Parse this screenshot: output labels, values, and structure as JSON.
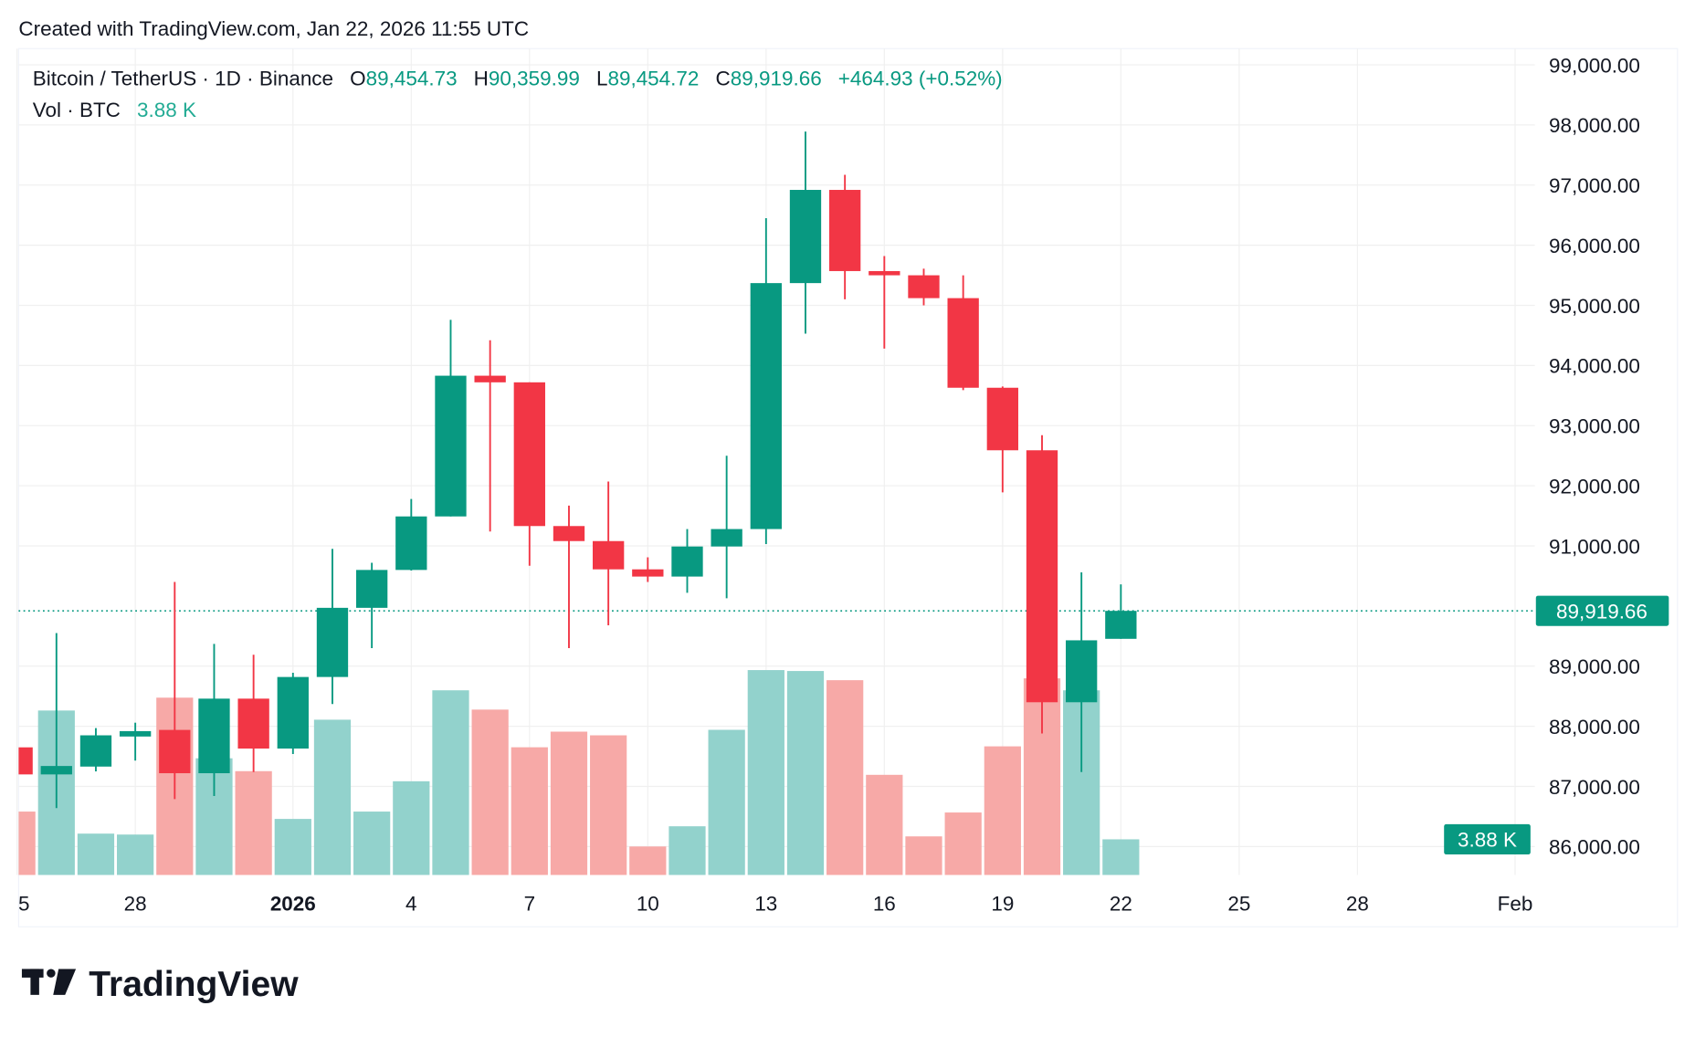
{
  "caption": "Created with TradingView.com, Jan 22, 2026 11:55 UTC",
  "legend": {
    "symbol": "Bitcoin / TetherUS · 1D · Binance",
    "o_label": "O",
    "o_value": "89,454.73",
    "h_label": "H",
    "h_value": "90,359.99",
    "l_label": "L",
    "l_value": "89,454.72",
    "c_label": "C",
    "c_value": "89,919.66",
    "change": "+464.93 (+0.52%)",
    "vol_label": "Vol · BTC",
    "vol_value": "3.88 K"
  },
  "last_price_label": "89,919.66",
  "last_volume_label": "3.88 K",
  "brand": "TradingView",
  "colors": {
    "up": "#089981",
    "down": "#F23645",
    "vol_up": "#92D2CC",
    "vol_down": "#F7A9A7",
    "grid": "#F0F0F0",
    "text": "#131722"
  },
  "chart_data": {
    "type": "candlestick",
    "price_axis": {
      "ticks": [
        "99,000.00",
        "98,000.00",
        "97,000.00",
        "96,000.00",
        "95,000.00",
        "94,000.00",
        "93,000.00",
        "92,000.00",
        "91,000.00",
        "89,000.00",
        "88,000.00",
        "87,000.00",
        "86,000.00"
      ],
      "tick_values": [
        99000,
        98000,
        97000,
        96000,
        95000,
        94000,
        93000,
        92000,
        91000,
        89000,
        88000,
        87000,
        86000
      ],
      "range": [
        85500,
        99300
      ]
    },
    "time_axis": {
      "ticks": [
        {
          "label": "5",
          "date": "2025-12-25"
        },
        {
          "label": "28",
          "date": "2025-12-28"
        },
        {
          "label": "2026",
          "date": "2026-01-01",
          "bold": true
        },
        {
          "label": "4",
          "date": "2026-01-04"
        },
        {
          "label": "7",
          "date": "2026-01-07"
        },
        {
          "label": "10",
          "date": "2026-01-10"
        },
        {
          "label": "13",
          "date": "2026-01-13"
        },
        {
          "label": "16",
          "date": "2026-01-16"
        },
        {
          "label": "19",
          "date": "2026-01-19"
        },
        {
          "label": "22",
          "date": "2026-01-22"
        },
        {
          "label": "25",
          "date": "2026-01-25"
        },
        {
          "label": "28",
          "date": "2026-01-28"
        },
        {
          "label": "Feb",
          "date": "2026-02-01"
        }
      ],
      "start": "2025-12-25",
      "end": "2026-02-01"
    },
    "grid": true,
    "last_price": 89919.66,
    "volume_unit": "K BTC",
    "candles": [
      {
        "date": "2025-12-25",
        "o": 87650,
        "h": 87700,
        "l": 87150,
        "c": 87200,
        "v": 6.9
      },
      {
        "date": "2025-12-26",
        "o": 87200,
        "h": 89550,
        "l": 86640,
        "c": 87340,
        "v": 17.9
      },
      {
        "date": "2025-12-27",
        "o": 87330,
        "h": 87970,
        "l": 87250,
        "c": 87850,
        "v": 4.5
      },
      {
        "date": "2025-12-28",
        "o": 87830,
        "h": 88060,
        "l": 87430,
        "c": 87920,
        "v": 4.4
      },
      {
        "date": "2025-12-29",
        "o": 87940,
        "h": 90400,
        "l": 86790,
        "c": 87220,
        "v": 19.3
      },
      {
        "date": "2025-12-30",
        "o": 87220,
        "h": 89370,
        "l": 86840,
        "c": 88460,
        "v": 12.7
      },
      {
        "date": "2025-12-31",
        "o": 88460,
        "h": 89190,
        "l": 87240,
        "c": 87630,
        "v": 11.3
      },
      {
        "date": "2026-01-01",
        "o": 87630,
        "h": 88890,
        "l": 87540,
        "c": 88820,
        "v": 6.1
      },
      {
        "date": "2026-01-02",
        "o": 88820,
        "h": 90950,
        "l": 88370,
        "c": 89970,
        "v": 16.9
      },
      {
        "date": "2026-01-03",
        "o": 89970,
        "h": 90720,
        "l": 89300,
        "c": 90600,
        "v": 6.9
      },
      {
        "date": "2026-01-04",
        "o": 90600,
        "h": 91780,
        "l": 90590,
        "c": 91490,
        "v": 10.2
      },
      {
        "date": "2026-01-05",
        "o": 91490,
        "h": 94760,
        "l": 91490,
        "c": 93830,
        "v": 20.1
      },
      {
        "date": "2026-01-06",
        "o": 93830,
        "h": 94420,
        "l": 91240,
        "c": 93720,
        "v": 18.0
      },
      {
        "date": "2026-01-07",
        "o": 93720,
        "h": 93720,
        "l": 90670,
        "c": 91330,
        "v": 13.9
      },
      {
        "date": "2026-01-08",
        "o": 91330,
        "h": 91670,
        "l": 89300,
        "c": 91080,
        "v": 15.6
      },
      {
        "date": "2026-01-09",
        "o": 91080,
        "h": 92070,
        "l": 89680,
        "c": 90610,
        "v": 15.2
      },
      {
        "date": "2026-01-10",
        "o": 90610,
        "h": 90810,
        "l": 90400,
        "c": 90490,
        "v": 3.1
      },
      {
        "date": "2026-01-11",
        "o": 90490,
        "h": 91280,
        "l": 90220,
        "c": 90990,
        "v": 5.3
      },
      {
        "date": "2026-01-12",
        "o": 90990,
        "h": 92500,
        "l": 90130,
        "c": 91280,
        "v": 15.8
      },
      {
        "date": "2026-01-13",
        "o": 91280,
        "h": 96450,
        "l": 91030,
        "c": 95370,
        "v": 22.3
      },
      {
        "date": "2026-01-14",
        "o": 95370,
        "h": 97890,
        "l": 94530,
        "c": 96920,
        "v": 22.2
      },
      {
        "date": "2026-01-15",
        "o": 96920,
        "h": 97170,
        "l": 95100,
        "c": 95570,
        "v": 21.2
      },
      {
        "date": "2026-01-16",
        "o": 95570,
        "h": 95820,
        "l": 94280,
        "c": 95500,
        "v": 10.9
      },
      {
        "date": "2026-01-17",
        "o": 95500,
        "h": 95610,
        "l": 95000,
        "c": 95120,
        "v": 4.2
      },
      {
        "date": "2026-01-18",
        "o": 95120,
        "h": 95500,
        "l": 93590,
        "c": 93630,
        "v": 6.8
      },
      {
        "date": "2026-01-19",
        "o": 93630,
        "h": 93650,
        "l": 91890,
        "c": 92590,
        "v": 14.0
      },
      {
        "date": "2026-01-20",
        "o": 92590,
        "h": 92840,
        "l": 87880,
        "c": 88400,
        "v": 21.4
      },
      {
        "date": "2026-01-21",
        "o": 88400,
        "h": 90560,
        "l": 87240,
        "c": 89430,
        "v": 20.1
      },
      {
        "date": "2026-01-22",
        "o": 89454.73,
        "h": 90359.99,
        "l": 89454.72,
        "c": 89919.66,
        "v": 3.88
      }
    ]
  }
}
